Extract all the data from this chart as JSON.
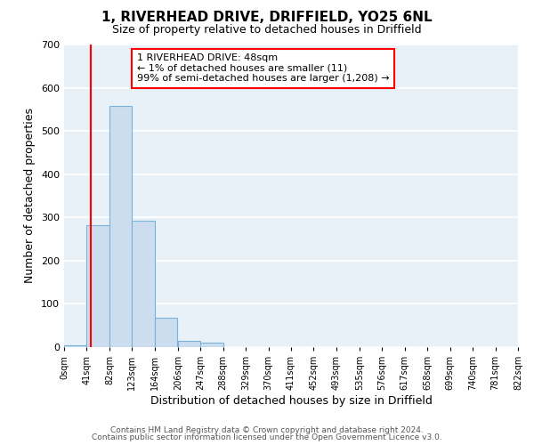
{
  "title": "1, RIVERHEAD DRIVE, DRIFFIELD, YO25 6NL",
  "subtitle": "Size of property relative to detached houses in Driffield",
  "xlabel": "Distribution of detached houses by size in Driffield",
  "ylabel": "Number of detached properties",
  "bin_edges": [
    0,
    41,
    82,
    123,
    164,
    206,
    247,
    288,
    329,
    370,
    411,
    452,
    493,
    535,
    576,
    617,
    658,
    699,
    740,
    781,
    822
  ],
  "bin_labels": [
    "0sqm",
    "41sqm",
    "82sqm",
    "123sqm",
    "164sqm",
    "206sqm",
    "247sqm",
    "288sqm",
    "329sqm",
    "370sqm",
    "411sqm",
    "452sqm",
    "493sqm",
    "535sqm",
    "576sqm",
    "617sqm",
    "658sqm",
    "699sqm",
    "740sqm",
    "781sqm",
    "822sqm"
  ],
  "bar_heights": [
    5,
    283,
    557,
    293,
    68,
    15,
    10,
    0,
    0,
    0,
    0,
    0,
    0,
    0,
    0,
    0,
    0,
    0,
    0,
    0
  ],
  "bar_color": "#ccddef",
  "bar_edgecolor": "#7ab4d8",
  "ylim": [
    0,
    700
  ],
  "yticks": [
    0,
    100,
    200,
    300,
    400,
    500,
    600,
    700
  ],
  "red_line_x": 48,
  "annotation_title": "1 RIVERHEAD DRIVE: 48sqm",
  "annotation_line1": "← 1% of detached houses are smaller (11)",
  "annotation_line2": "99% of semi-detached houses are larger (1,208) →",
  "footer1": "Contains HM Land Registry data © Crown copyright and database right 2024.",
  "footer2": "Contains public sector information licensed under the Open Government Licence v3.0.",
  "fig_facecolor": "#ffffff",
  "ax_facecolor": "#e8f0f8",
  "grid_color": "#ffffff",
  "title_fontsize": 11,
  "subtitle_fontsize": 9,
  "ylabel_fontsize": 9,
  "xlabel_fontsize": 9,
  "tick_fontsize": 7,
  "annotation_fontsize": 8,
  "footer_fontsize": 6.5
}
